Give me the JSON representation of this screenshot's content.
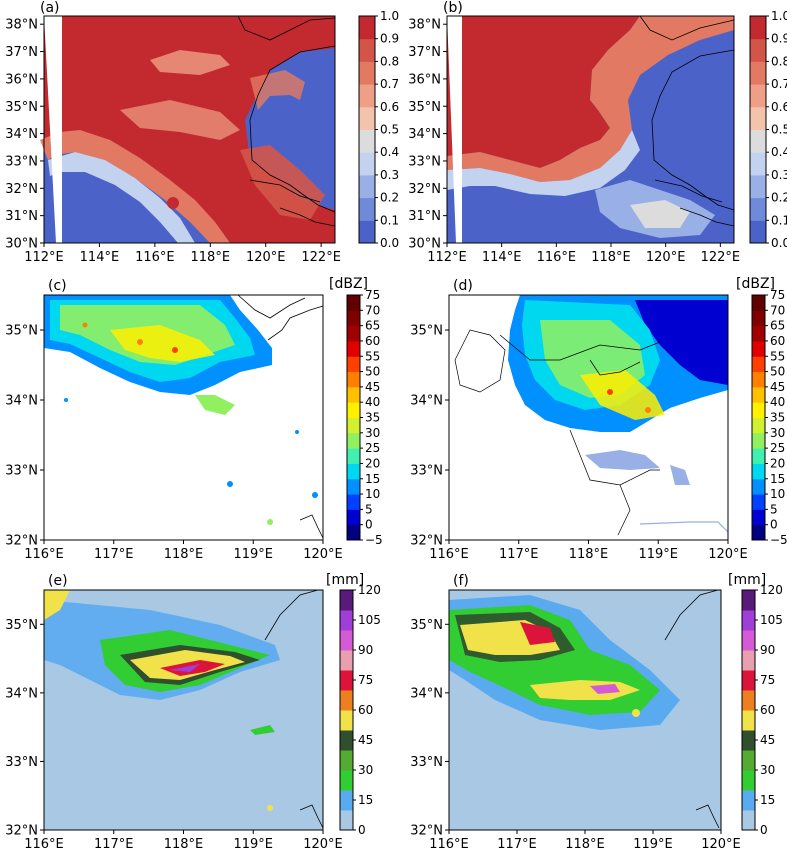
{
  "chart_data": [
    {
      "panel": "(a)",
      "type": "heatmap",
      "x_ticks": [
        "112°E",
        "114°E",
        "116°E",
        "118°E",
        "120°E",
        "122°E"
      ],
      "y_ticks": [
        "30°N",
        "31°N",
        "32°N",
        "33°N",
        "34°N",
        "35°N",
        "36°N",
        "37°N",
        "38°N"
      ],
      "xlim": [
        112,
        122.5
      ],
      "ylim": [
        30,
        38.3
      ],
      "colorbar": {
        "unit": "",
        "ticks": [
          "0.0",
          "0.1",
          "0.2",
          "0.3",
          "0.4",
          "0.5",
          "0.6",
          "0.7",
          "0.8",
          "0.9",
          "1.0"
        ]
      }
    },
    {
      "panel": "(b)",
      "type": "heatmap",
      "x_ticks": [
        "112°E",
        "114°E",
        "116°E",
        "118°E",
        "120°E",
        "122°E"
      ],
      "y_ticks": [
        "30°N",
        "31°N",
        "32°N",
        "33°N",
        "34°N",
        "35°N",
        "36°N",
        "37°N",
        "38°N"
      ],
      "xlim": [
        112,
        122.5
      ],
      "ylim": [
        30,
        38.3
      ],
      "colorbar": {
        "unit": "",
        "ticks": [
          "0.0",
          "0.1",
          "0.2",
          "0.3",
          "0.4",
          "0.5",
          "0.6",
          "0.7",
          "0.8",
          "0.9",
          "1.0"
        ]
      }
    },
    {
      "panel": "(c)",
      "type": "heatmap",
      "x_ticks": [
        "116°E",
        "117°E",
        "118°E",
        "119°E",
        "120°E"
      ],
      "y_ticks": [
        "32°N",
        "33°N",
        "34°N",
        "35°N"
      ],
      "xlim": [
        116,
        120
      ],
      "ylim": [
        32,
        35.5
      ],
      "colorbar": {
        "unit": "[dBZ]",
        "ticks": [
          "−5",
          "0",
          "5",
          "10",
          "15",
          "20",
          "25",
          "30",
          "35",
          "40",
          "45",
          "50",
          "55",
          "60",
          "65",
          "70",
          "75"
        ]
      }
    },
    {
      "panel": "(d)",
      "type": "heatmap",
      "x_ticks": [
        "116°E",
        "117°E",
        "118°E",
        "119°E",
        "120°E"
      ],
      "y_ticks": [
        "32°N",
        "33°N",
        "34°N",
        "35°N"
      ],
      "xlim": [
        116,
        120
      ],
      "ylim": [
        32,
        35.5
      ],
      "colorbar": {
        "unit": "[dBZ]",
        "ticks": [
          "−5",
          "0",
          "5",
          "10",
          "15",
          "20",
          "25",
          "30",
          "35",
          "40",
          "45",
          "50",
          "55",
          "60",
          "65",
          "70",
          "75"
        ]
      }
    },
    {
      "panel": "(e)",
      "type": "heatmap",
      "x_ticks": [
        "116°E",
        "117°E",
        "118°E",
        "119°E",
        "120°E"
      ],
      "y_ticks": [
        "32°N",
        "33°N",
        "34°N",
        "35°N"
      ],
      "xlim": [
        116,
        120
      ],
      "ylim": [
        32,
        35.5
      ],
      "colorbar": {
        "unit": "[mm]",
        "ticks": [
          "0",
          "15",
          "30",
          "45",
          "60",
          "75",
          "90",
          "105",
          "120"
        ]
      }
    },
    {
      "panel": "(f)",
      "type": "heatmap",
      "x_ticks": [
        "116°E",
        "117°E",
        "118°E",
        "119°E",
        "120°E"
      ],
      "y_ticks": [
        "32°N",
        "33°N",
        "34°N",
        "35°N"
      ],
      "xlim": [
        116,
        120
      ],
      "ylim": [
        32,
        35.5
      ],
      "colorbar": {
        "unit": "[mm]",
        "ticks": [
          "0",
          "15",
          "30",
          "45",
          "60",
          "75",
          "90",
          "105",
          "120"
        ]
      }
    }
  ],
  "palettes": {
    "prob": [
      "#4b63c9",
      "#6f8ad8",
      "#98b0e6",
      "#c3d3ef",
      "#dcdcdc",
      "#f3c3ac",
      "#ef9f85",
      "#e27a63",
      "#d3554a",
      "#c32a2f"
    ],
    "dbz": [
      "#000080",
      "#0000d0",
      "#0040ff",
      "#0090ff",
      "#00d8f0",
      "#40f0b0",
      "#90f060",
      "#d0f030",
      "#fff000",
      "#ffc000",
      "#ff8000",
      "#ff4000",
      "#e00000",
      "#a00000",
      "#800000",
      "#600000"
    ],
    "mm": [
      "#a8c8e4",
      "#5aaaf0",
      "#32cd32",
      "#55aa33",
      "#2f4f2f",
      "#f2e24a",
      "#ee7f21",
      "#dc143c",
      "#e8a0b0",
      "#d45ad6",
      "#9f3fd8",
      "#5a1a7a"
    ]
  },
  "colors": {
    "coast": "#000000",
    "ocean_prob": "#4b63c9",
    "background_mm": "#a8c8e4"
  }
}
